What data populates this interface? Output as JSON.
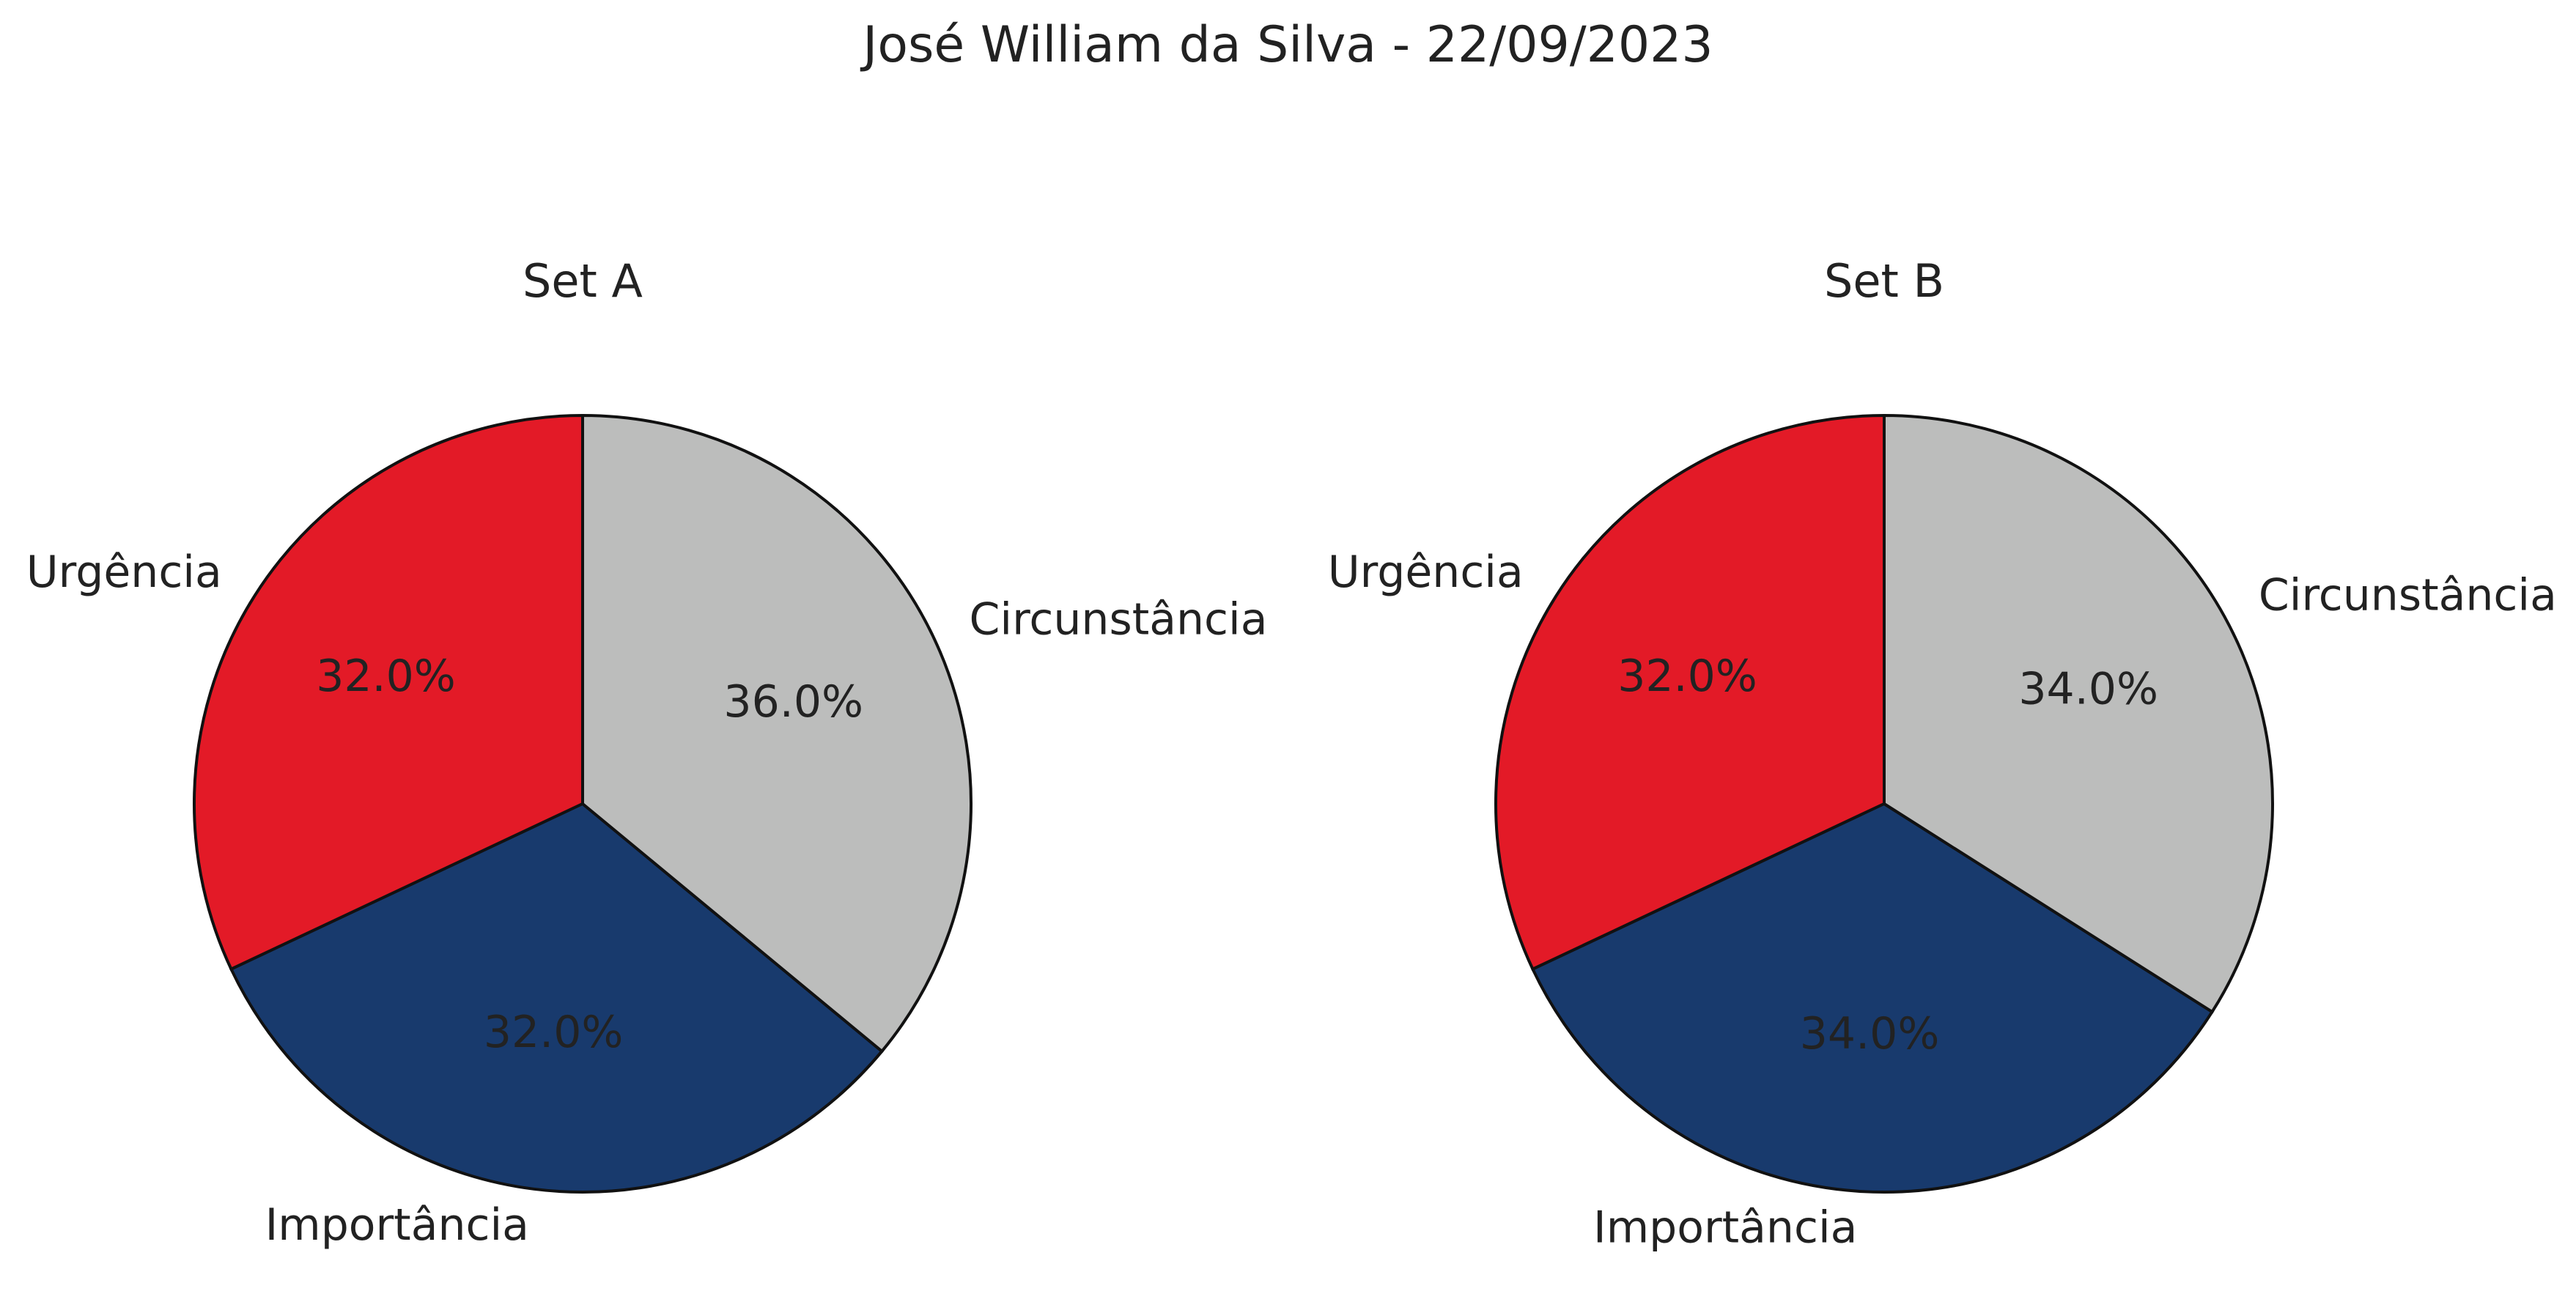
{
  "title": "José William da Silva - 22/09/2023",
  "chart_data": [
    {
      "type": "pie",
      "title": "Set A",
      "categories": [
        "Urgência",
        "Importância",
        "Circunstância"
      ],
      "values": [
        32.0,
        32.0,
        36.0
      ],
      "labels": [
        "32.0%",
        "32.0%",
        "36.0%"
      ],
      "colors": [
        "#e31a27",
        "#183a6d",
        "#bcbdbc"
      ],
      "start_angle": 90,
      "direction": "counterclockwise",
      "edge_color": "#111111"
    },
    {
      "type": "pie",
      "title": "Set B",
      "categories": [
        "Urgência",
        "Importância",
        "Circunstância"
      ],
      "values": [
        32.0,
        34.0,
        34.0
      ],
      "labels": [
        "32.0%",
        "34.0%",
        "34.0%"
      ],
      "colors": [
        "#e31a27",
        "#183a6d",
        "#bcbdbc"
      ],
      "start_angle": 90,
      "direction": "counterclockwise",
      "edge_color": "#111111"
    }
  ]
}
